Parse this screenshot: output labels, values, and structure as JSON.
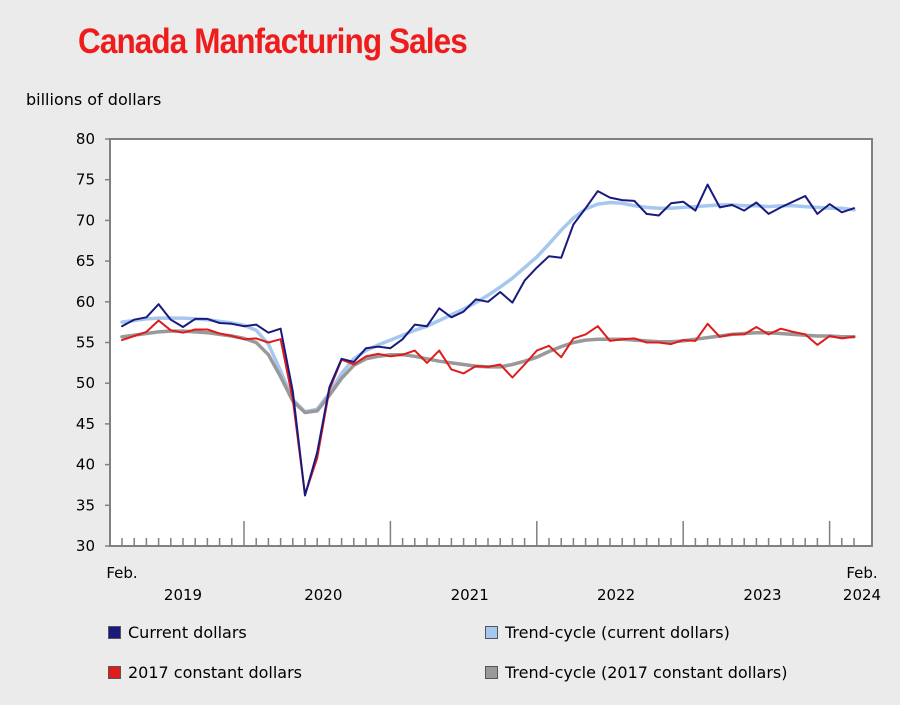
{
  "chart_data": {
    "type": "line",
    "title": "Canada Manfacturing Sales",
    "ylabel": "billions of dollars",
    "ylim": [
      30,
      80
    ],
    "yticks": [
      30,
      35,
      40,
      45,
      50,
      55,
      60,
      65,
      70,
      75,
      80
    ],
    "x": [
      "2019-02",
      "2019-03",
      "2019-04",
      "2019-05",
      "2019-06",
      "2019-07",
      "2019-08",
      "2019-09",
      "2019-10",
      "2019-11",
      "2019-12",
      "2020-01",
      "2020-02",
      "2020-03",
      "2020-04",
      "2020-05",
      "2020-06",
      "2020-07",
      "2020-08",
      "2020-09",
      "2020-10",
      "2020-11",
      "2020-12",
      "2021-01",
      "2021-02",
      "2021-03",
      "2021-04",
      "2021-05",
      "2021-06",
      "2021-07",
      "2021-08",
      "2021-09",
      "2021-10",
      "2021-11",
      "2021-12",
      "2022-01",
      "2022-02",
      "2022-03",
      "2022-04",
      "2022-05",
      "2022-06",
      "2022-07",
      "2022-08",
      "2022-09",
      "2022-10",
      "2022-11",
      "2022-12",
      "2023-01",
      "2023-02",
      "2023-03",
      "2023-04",
      "2023-05",
      "2023-06",
      "2023-07",
      "2023-08",
      "2023-09",
      "2023-10",
      "2023-11",
      "2023-12",
      "2024-01",
      "2024-02"
    ],
    "x_labels": {
      "first": "Feb.",
      "last": "Feb."
    },
    "years": [
      "2019",
      "2020",
      "2021",
      "2022",
      "2023",
      "2024"
    ],
    "grid": false,
    "series": [
      {
        "name": "Current dollars",
        "color": "#1a1a7e",
        "values": [
          57.0,
          57.8,
          58.1,
          59.7,
          57.8,
          56.9,
          57.9,
          57.9,
          57.4,
          57.3,
          57.0,
          57.2,
          56.2,
          56.7,
          49.0,
          36.2,
          41.5,
          49.5,
          53.0,
          52.6,
          54.3,
          54.5,
          54.3,
          55.4,
          57.2,
          57.0,
          59.2,
          58.1,
          58.8,
          60.3,
          60.0,
          61.2,
          59.9,
          62.6,
          64.2,
          65.6,
          65.4,
          69.5,
          71.5,
          73.6,
          72.8,
          72.5,
          72.4,
          70.8,
          70.6,
          72.1,
          72.3,
          71.2,
          74.4,
          71.6,
          71.9,
          71.2,
          72.2,
          70.8,
          71.6,
          72.3,
          73.0,
          70.8,
          72.0,
          71.0,
          71.5
        ]
      },
      {
        "name": "Trend-cycle (current dollars)",
        "color": "#a6c8ef",
        "values": [
          57.5,
          57.7,
          57.9,
          58.0,
          58.0,
          58.0,
          57.9,
          57.8,
          57.6,
          57.4,
          57.1,
          56.5,
          54.8,
          51.5,
          48.0,
          46.5,
          46.8,
          48.8,
          51.2,
          53.0,
          54.0,
          54.7,
          55.3,
          55.9,
          56.5,
          57.0,
          57.7,
          58.4,
          59.1,
          59.9,
          60.8,
          61.8,
          62.9,
          64.2,
          65.5,
          67.1,
          68.8,
          70.3,
          71.4,
          72.0,
          72.2,
          72.1,
          71.8,
          71.6,
          71.5,
          71.5,
          71.6,
          71.7,
          71.8,
          71.9,
          71.9,
          71.8,
          71.8,
          71.7,
          71.8,
          71.8,
          71.7,
          71.6,
          71.5,
          71.5,
          71.3
        ]
      },
      {
        "name": "2017 constant dollars",
        "color": "#e01b1b",
        "values": [
          55.3,
          55.8,
          56.3,
          57.7,
          56.5,
          56.2,
          56.6,
          56.6,
          56.1,
          55.8,
          55.4,
          55.5,
          55.0,
          55.4,
          48.0,
          36.3,
          40.8,
          49.2,
          52.9,
          52.3,
          53.3,
          53.6,
          53.3,
          53.5,
          54.0,
          52.5,
          54.0,
          51.7,
          51.2,
          52.1,
          52.0,
          52.3,
          50.7,
          52.3,
          54.0,
          54.6,
          53.2,
          55.5,
          56.0,
          57.0,
          55.2,
          55.4,
          55.5,
          55.0,
          55.0,
          54.8,
          55.3,
          55.2,
          57.3,
          55.7,
          56.0,
          56.0,
          56.9,
          56.0,
          56.7,
          56.3,
          56.0,
          54.7,
          55.8,
          55.5,
          55.7
        ]
      },
      {
        "name": "Trend-cycle (2017 constant dollars)",
        "color": "#999999",
        "values": [
          55.7,
          55.9,
          56.1,
          56.3,
          56.4,
          56.4,
          56.3,
          56.2,
          56.0,
          55.8,
          55.5,
          55.0,
          53.5,
          50.8,
          47.8,
          46.4,
          46.6,
          48.5,
          50.6,
          52.2,
          53.0,
          53.3,
          53.5,
          53.5,
          53.3,
          53.0,
          52.7,
          52.5,
          52.3,
          52.1,
          52.0,
          52.0,
          52.3,
          52.7,
          53.2,
          53.9,
          54.5,
          55.0,
          55.3,
          55.4,
          55.4,
          55.4,
          55.3,
          55.2,
          55.1,
          55.1,
          55.2,
          55.4,
          55.6,
          55.8,
          56.0,
          56.1,
          56.2,
          56.2,
          56.1,
          56.0,
          55.9,
          55.8,
          55.8,
          55.7,
          55.7
        ]
      }
    ]
  }
}
